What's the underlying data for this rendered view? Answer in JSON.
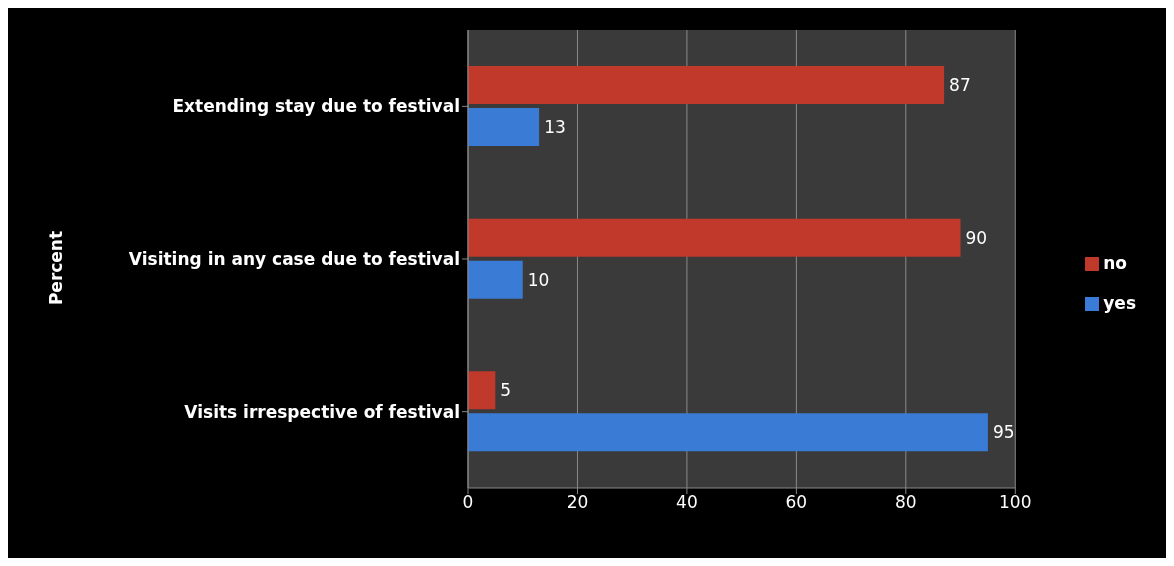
{
  "chart_data": {
    "type": "bar",
    "orientation": "horizontal",
    "ylabel": "Percent",
    "categories": [
      "Extending stay due to festival",
      "Visiting in any case due to festival",
      "Visits irrespective of festival"
    ],
    "series": [
      {
        "name": "no",
        "color": "#c0392b",
        "values": [
          87,
          90,
          5
        ]
      },
      {
        "name": "yes",
        "color": "#3a7bd5",
        "values": [
          13,
          10,
          95
        ]
      }
    ],
    "xlim": [
      0,
      100
    ],
    "xticks": [
      0,
      20,
      40,
      60,
      80,
      100
    ],
    "grid": "x",
    "legend": "right",
    "data_labels": true
  }
}
